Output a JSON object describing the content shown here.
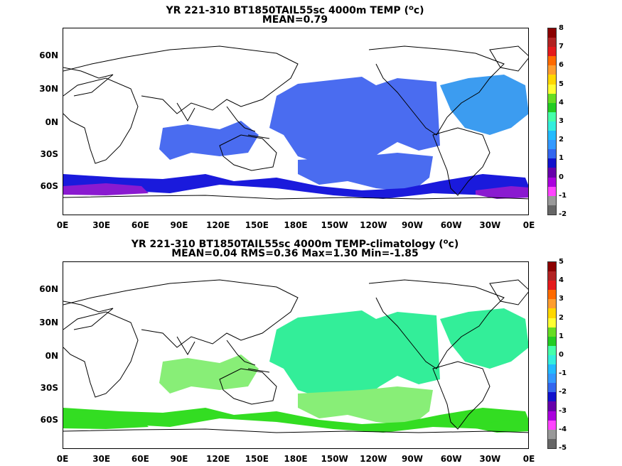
{
  "panels": [
    {
      "title_main": "YR 221-310 BT1850TAIL55sc 4000m TEMP (",
      "title_deg": "o",
      "title_tail": "c)",
      "subtitle": "MEAN=0.79",
      "colorbar": {
        "ticks": [
          "8",
          "7",
          "6",
          "5",
          "4",
          "3",
          "2",
          "1",
          "0",
          "-1",
          "-2"
        ],
        "colors": [
          "#8b0000",
          "#b22222",
          "#e41a1c",
          "#ff6a00",
          "#ff9d2e",
          "#ffd700",
          "#ffff33",
          "#66dd22",
          "#22cc22",
          "#44ffaa",
          "#33eedd",
          "#22bbff",
          "#3399ff",
          "#3366ee",
          "#1111cc",
          "#6600aa",
          "#aa00dd",
          "#ff44ff",
          "#999999",
          "#666666"
        ]
      },
      "map_fills": [
        {
          "region": "north-pacific",
          "color": "#4a6cf0"
        },
        {
          "region": "south-pacific",
          "color": "#4a6cf0"
        },
        {
          "region": "indian-ocean",
          "color": "#4a6cf0"
        },
        {
          "region": "north-atlantic",
          "color": "#3c9cf0"
        },
        {
          "region": "southern-ocean",
          "color": "#1a1adc"
        },
        {
          "region": "weddell-sea",
          "color": "#8a1ad0"
        }
      ]
    },
    {
      "title_main": "YR 221-310 BT1850TAIL55sc 4000m TEMP-climatology (",
      "title_deg": "o",
      "title_tail": "c)",
      "subtitle": "MEAN=0.04   RMS=0.36   Max=1.30   Min=-1.85",
      "colorbar": {
        "ticks": [
          "5",
          "4",
          "3",
          "2",
          "1",
          "0",
          "-1",
          "-2",
          "-3",
          "-4",
          "-5"
        ],
        "colors": [
          "#8b0000",
          "#b22222",
          "#e41a1c",
          "#ff6a00",
          "#ff9d2e",
          "#ffd700",
          "#ffff33",
          "#66dd22",
          "#22cc22",
          "#44ffaa",
          "#33eedd",
          "#22bbff",
          "#3399ff",
          "#3366ee",
          "#1111cc",
          "#6600aa",
          "#aa00dd",
          "#ff44ff",
          "#999999",
          "#666666"
        ]
      },
      "map_fills": [
        {
          "region": "north-pacific",
          "color": "#33ee99"
        },
        {
          "region": "south-pacific",
          "color": "#88ee77"
        },
        {
          "region": "indian-ocean",
          "color": "#88ee77"
        },
        {
          "region": "north-atlantic",
          "color": "#33ee99"
        },
        {
          "region": "southern-ocean",
          "color": "#33dd22"
        },
        {
          "region": "weddell-sea",
          "color": "#33dd22"
        }
      ]
    }
  ],
  "axes": {
    "lat_labels": [
      "60N",
      "30N",
      "0N",
      "30S",
      "60S"
    ],
    "lon_labels": [
      "0E",
      "30E",
      "60E",
      "90E",
      "120E",
      "150E",
      "180E",
      "150W",
      "120W",
      "90W",
      "60W",
      "30W",
      "0E"
    ]
  },
  "chart_data": [
    {
      "type": "heatmap",
      "title": "YR 221-310 BT1850TAIL55sc 4000m TEMP (oc)",
      "subtitle": "MEAN=0.79",
      "x_ticks": [
        "0E",
        "30E",
        "60E",
        "90E",
        "120E",
        "150E",
        "180E",
        "150W",
        "120W",
        "90W",
        "60W",
        "30W",
        "0E"
      ],
      "y_ticks": [
        "60N",
        "30N",
        "0N",
        "30S",
        "60S"
      ],
      "colorbar_range": [
        -2,
        8
      ],
      "colorbar_ticks": [
        8,
        7,
        6,
        5,
        4,
        3,
        2,
        1,
        0,
        -1,
        -2
      ],
      "mean": 0.79
    },
    {
      "type": "heatmap",
      "title": "YR 221-310 BT1850TAIL55sc 4000m TEMP-climatology (oc)",
      "subtitle": "MEAN=0.04   RMS=0.36   Max=1.30   Min=-1.85",
      "x_ticks": [
        "0E",
        "30E",
        "60E",
        "90E",
        "120E",
        "150E",
        "180E",
        "150W",
        "120W",
        "90W",
        "60W",
        "30W",
        "0E"
      ],
      "y_ticks": [
        "60N",
        "30N",
        "0N",
        "30S",
        "60S"
      ],
      "colorbar_range": [
        -5,
        5
      ],
      "colorbar_ticks": [
        5,
        4,
        3,
        2,
        1,
        0,
        -1,
        -2,
        -3,
        -4,
        -5
      ],
      "mean": 0.04,
      "rms": 0.36,
      "max": 1.3,
      "min": -1.85
    }
  ]
}
